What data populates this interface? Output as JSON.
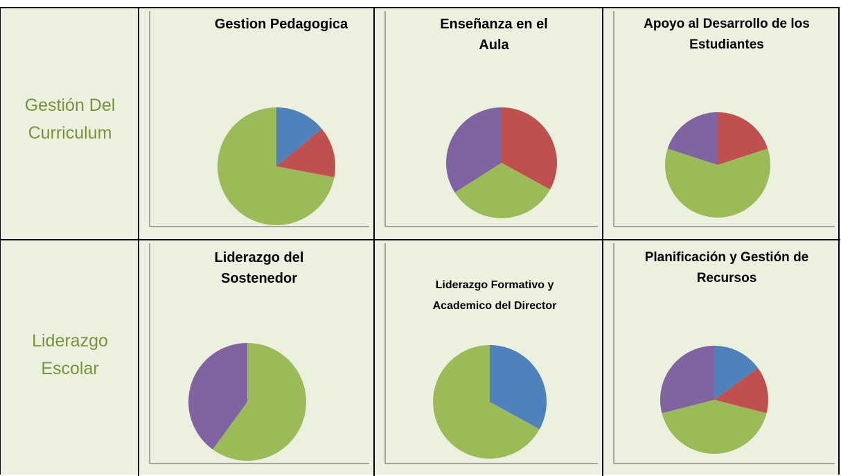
{
  "row_labels": [
    "Gestión Del Curriculum",
    "Liderazgo Escolar"
  ],
  "chart_data": [
    {
      "type": "pie",
      "title": "Gestion Pedagogica",
      "values": [
        14,
        14,
        72
      ],
      "colors": [
        "#4f81bd",
        "#c0504d",
        "#9bbb59"
      ]
    },
    {
      "type": "pie",
      "title": "Enseñanza en el Aula",
      "values": [
        33,
        33,
        34
      ],
      "colors": [
        "#c0504d",
        "#9bbb59",
        "#8064a2"
      ]
    },
    {
      "type": "pie",
      "title": "Apoyo al Desarrollo de los Estudiantes",
      "values": [
        20,
        60,
        20
      ],
      "colors": [
        "#c0504d",
        "#9bbb59",
        "#8064a2"
      ]
    },
    {
      "type": "pie",
      "title": "Liderazgo del Sostenedor",
      "values": [
        60,
        40
      ],
      "colors": [
        "#9bbb59",
        "#8064a2"
      ]
    },
    {
      "type": "pie",
      "title": "Liderazgo Formativo y Academico del Director",
      "values": [
        33,
        67
      ],
      "colors": [
        "#4f81bd",
        "#9bbb59"
      ]
    },
    {
      "type": "pie",
      "title": "Planificación y Gestión de Recursos",
      "values": [
        15,
        14,
        42,
        29
      ],
      "colors": [
        "#4f81bd",
        "#c0504d",
        "#9bbb59",
        "#8064a2"
      ]
    }
  ]
}
